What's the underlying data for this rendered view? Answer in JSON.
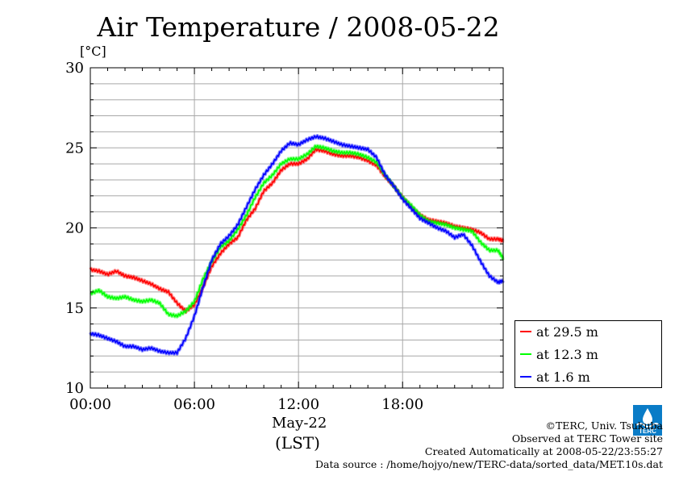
{
  "title": "Air Temperature / 2008-05-22",
  "chart_data": {
    "type": "line",
    "title": "Air Temperature / 2008-05-22",
    "ylabel": "[°C]",
    "xlabel": "May-22",
    "xlabel2": "(LST)",
    "ylim": [
      10,
      30
    ],
    "xlim": [
      0,
      23.8
    ],
    "yticks": [
      "10",
      "15",
      "20",
      "25",
      "30"
    ],
    "xticks": [
      "00:00",
      "06:00",
      "12:00",
      "18:00"
    ],
    "xtick_hours": [
      0,
      6,
      12,
      18
    ],
    "grid": true,
    "legend_position": "bottom-right",
    "series": [
      {
        "name": "at 29.5 m",
        "color": "#ff0000",
        "x": [
          0,
          0.5,
          1,
          1.5,
          2,
          2.5,
          3,
          3.5,
          4,
          4.5,
          5,
          5.5,
          6,
          6.5,
          7,
          7.5,
          8,
          8.5,
          9,
          9.5,
          10,
          10.5,
          11,
          11.5,
          12,
          12.5,
          13,
          13.5,
          14,
          14.5,
          15,
          15.5,
          16,
          16.5,
          17,
          17.5,
          18,
          18.5,
          19,
          19.5,
          20,
          20.5,
          21,
          21.5,
          22,
          22.5,
          23,
          23.5,
          23.8
        ],
        "y": [
          17.4,
          17.3,
          17.1,
          17.3,
          17.0,
          16.9,
          16.7,
          16.5,
          16.2,
          16.0,
          15.3,
          14.8,
          15.2,
          16.3,
          17.6,
          18.4,
          19.0,
          19.4,
          20.5,
          21.2,
          22.3,
          22.8,
          23.6,
          24.0,
          24.0,
          24.3,
          24.9,
          24.8,
          24.6,
          24.5,
          24.5,
          24.4,
          24.2,
          23.9,
          23.2,
          22.6,
          21.9,
          21.3,
          20.8,
          20.5,
          20.4,
          20.3,
          20.1,
          20.0,
          19.9,
          19.7,
          19.3,
          19.3,
          19.2
        ]
      },
      {
        "name": "at 12.3 m",
        "color": "#00ff00",
        "x": [
          0,
          0.5,
          1,
          1.5,
          2,
          2.5,
          3,
          3.5,
          4,
          4.5,
          5,
          5.5,
          6,
          6.5,
          7,
          7.5,
          8,
          8.5,
          9,
          9.5,
          10,
          10.5,
          11,
          11.5,
          12,
          12.5,
          13,
          13.5,
          14,
          14.5,
          15,
          15.5,
          16,
          16.5,
          17,
          17.5,
          18,
          18.5,
          19,
          19.5,
          20,
          20.5,
          21,
          21.5,
          22,
          22.5,
          23,
          23.5,
          23.8
        ],
        "y": [
          15.9,
          16.1,
          15.7,
          15.6,
          15.7,
          15.5,
          15.4,
          15.5,
          15.3,
          14.6,
          14.5,
          14.8,
          15.4,
          16.8,
          17.9,
          18.8,
          19.2,
          19.9,
          20.8,
          21.9,
          22.8,
          23.3,
          24.0,
          24.3,
          24.3,
          24.6,
          25.1,
          25.0,
          24.8,
          24.7,
          24.7,
          24.6,
          24.4,
          24.1,
          23.3,
          22.6,
          21.9,
          21.4,
          20.8,
          20.4,
          20.3,
          20.2,
          20.0,
          19.9,
          19.8,
          19.1,
          18.6,
          18.6,
          18.1
        ]
      },
      {
        "name": "at 1.6 m",
        "color": "#0000ff",
        "x": [
          0,
          0.5,
          1,
          1.5,
          2,
          2.5,
          3,
          3.5,
          4,
          4.5,
          5,
          5.5,
          6,
          6.5,
          7,
          7.5,
          8,
          8.5,
          9,
          9.5,
          10,
          10.5,
          11,
          11.5,
          12,
          12.5,
          13,
          13.5,
          14,
          14.5,
          15,
          15.5,
          16,
          16.5,
          17,
          17.5,
          18,
          18.5,
          19,
          19.5,
          20,
          20.5,
          21,
          21.5,
          22,
          22.5,
          23,
          23.5,
          23.8
        ],
        "y": [
          13.4,
          13.3,
          13.1,
          12.9,
          12.6,
          12.6,
          12.4,
          12.5,
          12.3,
          12.2,
          12.2,
          13.1,
          14.5,
          16.3,
          18.0,
          19.0,
          19.5,
          20.2,
          21.3,
          22.4,
          23.3,
          24.0,
          24.8,
          25.3,
          25.2,
          25.5,
          25.7,
          25.6,
          25.4,
          25.2,
          25.1,
          25.0,
          24.9,
          24.4,
          23.3,
          22.6,
          21.8,
          21.2,
          20.6,
          20.3,
          20.0,
          19.8,
          19.4,
          19.6,
          18.9,
          17.9,
          17.0,
          16.6,
          16.7
        ]
      }
    ]
  },
  "credits": {
    "line1": "©TERC, Univ. Tsukuba",
    "line2": "Observed at TERC Tower site",
    "line3": "Created Automatically at 2008-05-22/23:55:27",
    "line4": "Data source : /home/hojyo/new/TERC-data/sorted_data/MET.10s.dat"
  },
  "logo_text": "TERC",
  "colors": {
    "red": "#ff0000",
    "green": "#00ff00",
    "blue": "#0000ff",
    "logo": "#0a7cc7"
  }
}
